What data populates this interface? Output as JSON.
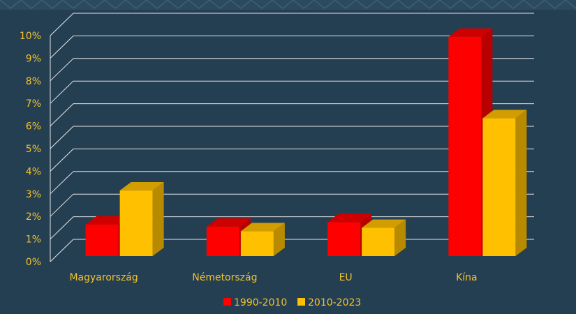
{
  "chart_data": {
    "type": "bar",
    "categories": [
      "Magyarország",
      "Németország",
      "EU",
      "Kína"
    ],
    "series": [
      {
        "name": "1990-2010",
        "values": [
          1.4,
          1.3,
          1.5,
          9.7
        ],
        "color": "#ff0000"
      },
      {
        "name": "2010-2023",
        "values": [
          2.9,
          1.1,
          1.25,
          6.1
        ],
        "color": "#ffc000"
      }
    ],
    "y_ticks": [
      "0%",
      "1%",
      "2%",
      "3%",
      "4%",
      "5%",
      "6%",
      "7%",
      "8%",
      "9%",
      "10%"
    ],
    "ylim": [
      0,
      10
    ],
    "grid": true,
    "legend_position": "bottom",
    "background": "#253f52",
    "text_color": "#f2c230",
    "grid_color": "#e6e6e6"
  }
}
